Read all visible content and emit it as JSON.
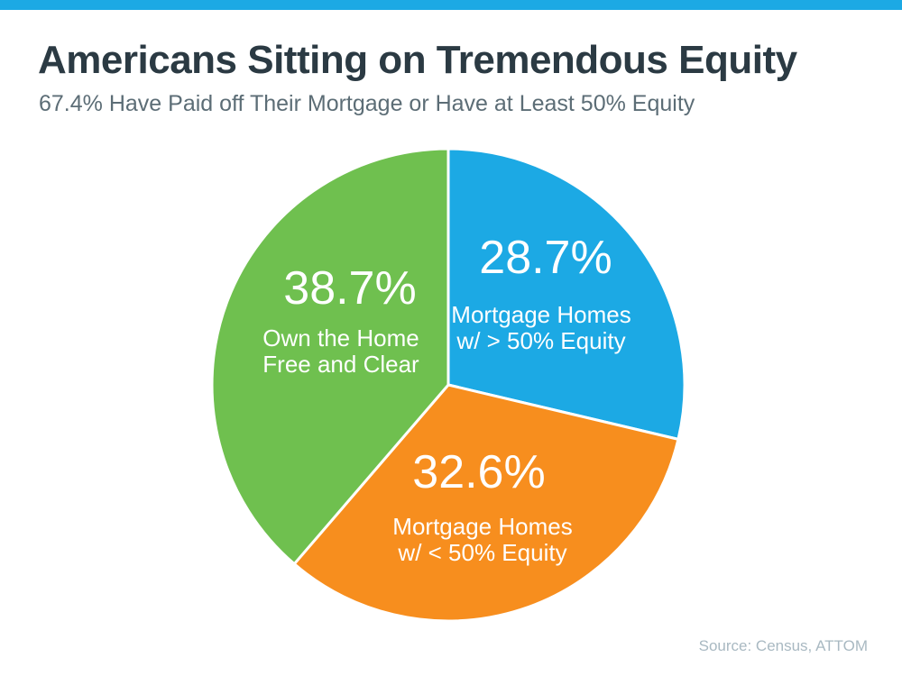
{
  "theme": {
    "accent_bar_color": "#1CA9E4",
    "title_color": "#2B3A43",
    "subtitle_color": "#5C6D76",
    "slice_text_color": "#FFFFFF",
    "slice_border_color": "#FFFFFF",
    "source_color": "#A9B9C2",
    "background_color": "#FFFFFF"
  },
  "chart_data": {
    "type": "pie",
    "title": "Americans Sitting on Tremendous Equity",
    "subtitle": "67.4% Have Paid off Their Mortgage or Have at Least 50% Equity",
    "start_angle_deg": 0,
    "direction": "clockwise",
    "legend_position": "labels-inside-slices",
    "slices": [
      {
        "name": "mortgage-homes-gt-50-equity",
        "value_pct": 28.7,
        "value_label": "28.7%",
        "label": "Mortgage Homes w/ > 50% Equity",
        "label_lines": [
          "Mortgage Homes",
          "w/ > 50% Equity"
        ],
        "color": "#1CA9E4"
      },
      {
        "name": "mortgage-homes-lt-50-equity",
        "value_pct": 32.6,
        "value_label": "32.6%",
        "label": "Mortgage Homes w/ < 50% Equity",
        "label_lines": [
          "Mortgage Homes",
          "w/ < 50% Equity"
        ],
        "color": "#F78E1E"
      },
      {
        "name": "own-home-free-and-clear",
        "value_pct": 38.7,
        "value_label": "38.7%",
        "label": "Own the Home Free and Clear",
        "label_lines": [
          "Own the Home",
          "Free and Clear"
        ],
        "color": "#6FC04F"
      }
    ],
    "source": "Source: Census, ATTOM"
  }
}
